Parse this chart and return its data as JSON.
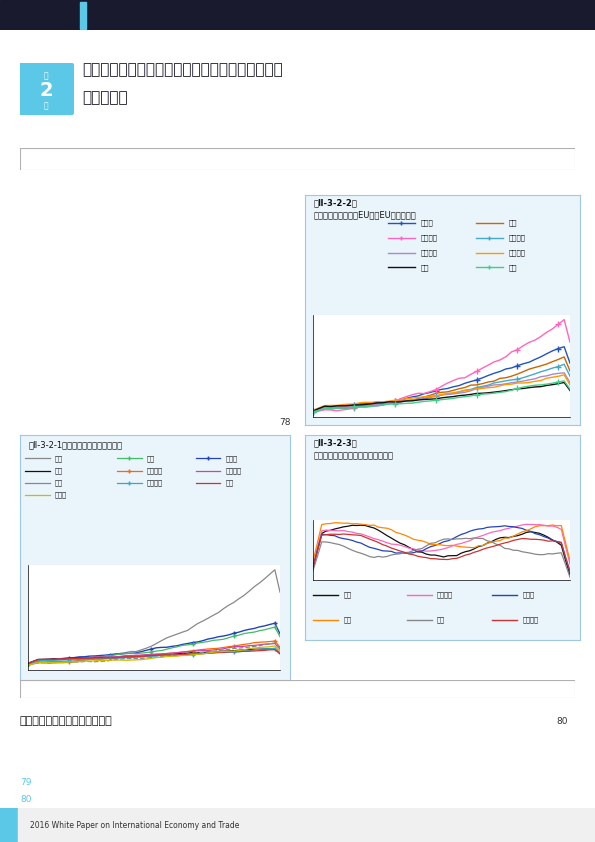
{
  "page_bg": "#ffffff",
  "header_bar_color": "#5bc8e8",
  "header_title_line1": "ドイツをはじめとする地域産業・地域輸出拡大の",
  "header_title_line2": "要因・要素",
  "section_label": "（１）ドイツの雇用と地域格差",
  "footer_text": "2016 White Paper on International Economy and Trade",
  "fig1_title": "第Ⅱ-3-2-1図　輸出上位国の輸出推移",
  "fig2_title1": "第Ⅱ-3-2-2図",
  "fig2_title2": "主要国の輸出推移（EUは非EU向けのみ）",
  "fig3_title1": "第Ⅱ-3-2-3図",
  "fig3_title2": "主要国の実質実効為替レートの推移",
  "chart_bg": "#eaf4fb",
  "chart_border": "#a0c8e0",
  "legend_bg": "#eaf4fb",
  "legend_border": "#a0c8e0",
  "pg78_label": "78",
  "pg_num_color": "#5bc8e8",
  "dark_bar_color": "#1a1a2e",
  "accent_cyan": "#5bc8e8"
}
